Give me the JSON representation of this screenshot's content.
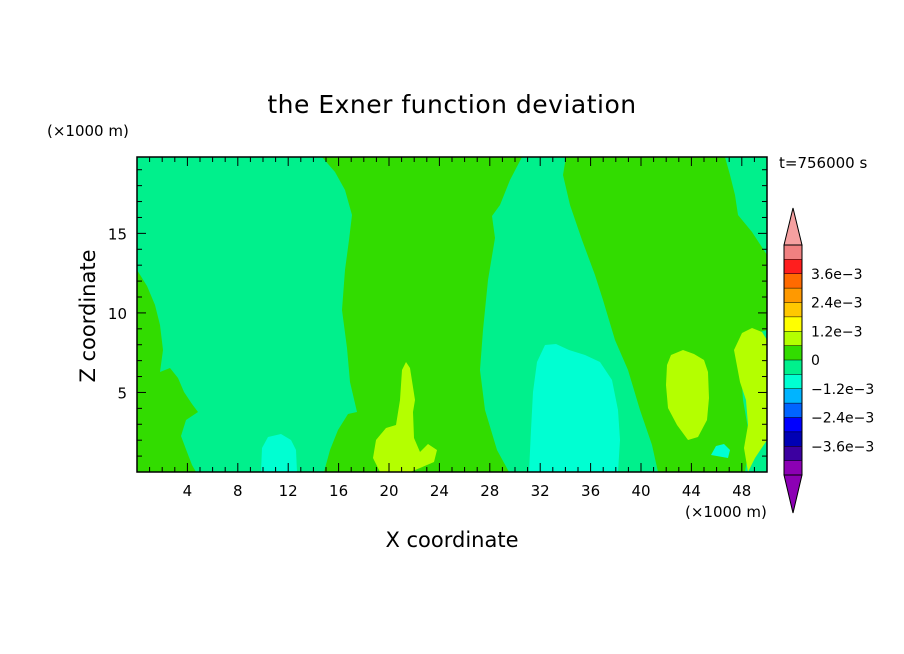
{
  "chart_data": {
    "type": "contour",
    "title": "the Exner function deviation",
    "xlabel": "X coordinate",
    "ylabel": "Z coordinate",
    "x_unit": "(×1000 m)",
    "y_unit": "(×1000 m)",
    "time_label": "t=756000 s",
    "xlim": [
      0,
      50
    ],
    "ylim": [
      0,
      19.8
    ],
    "x_ticks": [
      4,
      8,
      12,
      16,
      20,
      24,
      28,
      32,
      36,
      40,
      44,
      48
    ],
    "y_ticks": [
      5,
      10,
      15
    ],
    "colorbar": {
      "levels": [
        -0.0042,
        -0.0036,
        -0.003,
        -0.0024,
        -0.0018,
        -0.0012,
        -0.0006,
        0,
        0.0006,
        0.0012,
        0.0018,
        0.0024,
        0.003,
        0.0036,
        0.0042
      ],
      "tick_labels": [
        "3.6e−3",
        "2.4e−3",
        "1.2e−3",
        "0",
        "−1.2e−3",
        "−2.4e−3",
        "−3.6e−3"
      ],
      "tick_values": [
        0.0036,
        0.0024,
        0.0012,
        0,
        -0.0012,
        -0.0024,
        -0.0036
      ],
      "colors_top_to_bottom": [
        "#f08080",
        "#ff1e1e",
        "#ff6a00",
        "#ff9900",
        "#ffc800",
        "#ffff00",
        "#b4ff00",
        "#32dc00",
        "#00f08c",
        "#00ffd2",
        "#00b4ff",
        "#0064ff",
        "#0000ff",
        "#0000b4",
        "#3c00a0",
        "#8c00b4"
      ],
      "over_color": "#f5a0a0",
      "under_color": "#8c00b4"
    },
    "regions": [
      {
        "name": "background",
        "value_range": [
          -0.0006,
          0
        ],
        "color": "#00f08c"
      },
      {
        "name": "positive-band-west",
        "value_range": [
          0,
          0.0006
        ],
        "color": "#32dc00",
        "x_range": [
          14,
          31
        ],
        "z_range": [
          0,
          19.8
        ]
      },
      {
        "name": "positive-band-east",
        "value_range": [
          0,
          0.0006
        ],
        "color": "#32dc00",
        "x_range": [
          37,
          48
        ],
        "z_range": [
          0,
          19.8
        ]
      },
      {
        "name": "positive-edge-west",
        "value_range": [
          0,
          0.0006
        ],
        "color": "#32dc00",
        "x_range": [
          0,
          5
        ],
        "z_range": [
          0,
          12.5
        ]
      },
      {
        "name": "negative-cell-center",
        "value_range": [
          -0.0012,
          -0.0006
        ],
        "color": "#00ffd2",
        "x_range": [
          30,
          38
        ],
        "z_range": [
          0,
          8.2
        ]
      },
      {
        "name": "negative-cell-small",
        "value_range": [
          -0.0012,
          -0.0006
        ],
        "color": "#00ffd2",
        "x_range": [
          10,
          13
        ],
        "z_range": [
          0,
          2.3
        ]
      },
      {
        "name": "positive-cell-1",
        "value_range": [
          0.0006,
          0.0012
        ],
        "color": "#b4ff00",
        "x_range": [
          19,
          24.5
        ],
        "z_range": [
          0,
          7
        ]
      },
      {
        "name": "positive-cell-2",
        "value_range": [
          0.0006,
          0.0012
        ],
        "color": "#b4ff00",
        "x_range": [
          41,
          44.5
        ],
        "z_range": [
          2,
          7.7
        ]
      },
      {
        "name": "positive-cell-3",
        "value_range": [
          0.0006,
          0.0012
        ],
        "color": "#b4ff00",
        "x_range": [
          47,
          50
        ],
        "z_range": [
          1,
          9
        ]
      }
    ]
  }
}
